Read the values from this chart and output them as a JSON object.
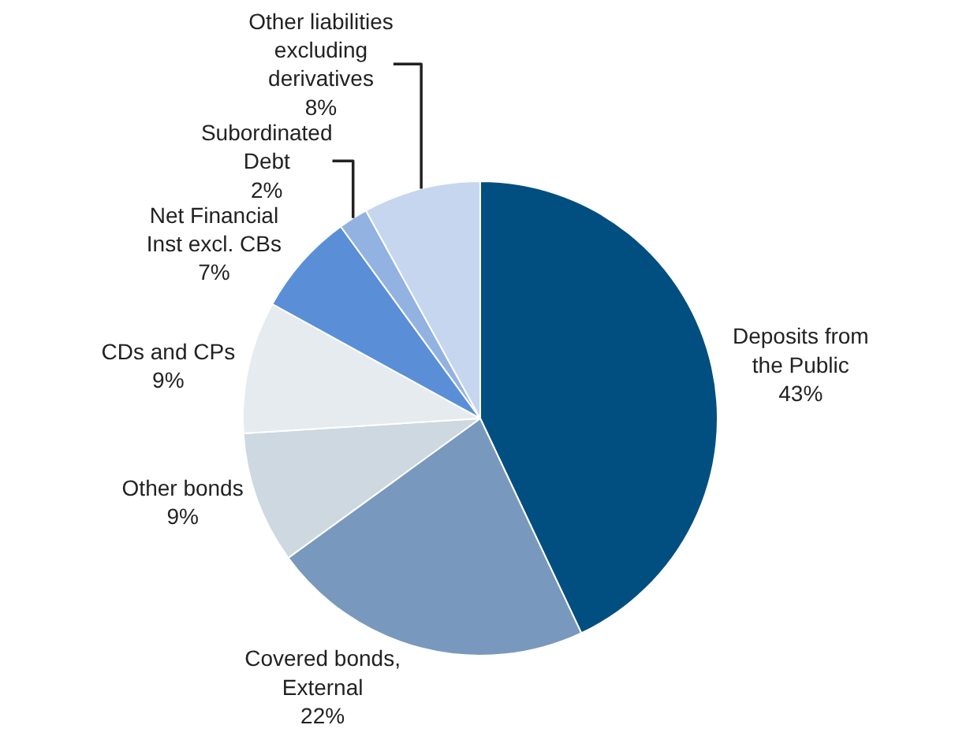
{
  "chart_data": {
    "type": "pie",
    "categories": [
      "Deposits from\nthe Public",
      "Covered bonds,\nExternal",
      "Other bonds",
      "CDs and CPs",
      "Net Financial\nInst excl. CBs",
      "Subordinated\nDebt",
      "Other liabilities\nexcluding\nderivatives"
    ],
    "values": [
      43,
      22,
      9,
      9,
      7,
      2,
      8
    ],
    "value_labels": [
      "43%",
      "22%",
      "9%",
      "9%",
      "7%",
      "2%",
      "8%"
    ],
    "colors": [
      "#004f80",
      "#7899bd",
      "#cdd8e0",
      "#e6ebf0",
      "#5a8fd8",
      "#92b2e2",
      "#c6d6ef"
    ],
    "legend": false
  }
}
